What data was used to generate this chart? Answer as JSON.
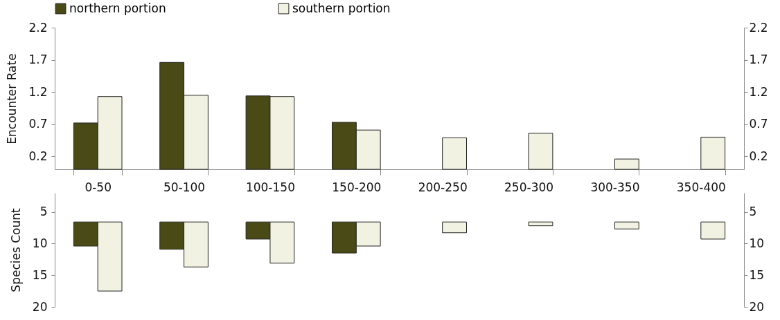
{
  "chart_data": [
    {
      "type": "bar",
      "ylabel": "Encounter Rate",
      "categories": [
        "0-50",
        "50-100",
        "100-150",
        "150-200",
        "200-250",
        "250-300",
        "300-350",
        "350-400"
      ],
      "series": [
        {
          "name": "northern portion",
          "color": "#4a4a16",
          "values": [
            0.72,
            1.66,
            1.14,
            0.73,
            null,
            null,
            null,
            null
          ]
        },
        {
          "name": "southern portion",
          "color": "#f2f2e2",
          "values": [
            1.13,
            1.15,
            1.13,
            0.61,
            0.49,
            0.56,
            0.16,
            0.5
          ]
        }
      ],
      "ylim": [
        0,
        2.2
      ],
      "yticks": [
        0.2,
        0.7,
        1.2,
        1.7,
        2.2
      ],
      "y2lim": [
        0,
        2.2
      ],
      "y2ticks": [
        0.2,
        0.7,
        1.2,
        1.7,
        2.2
      ],
      "legend": "top"
    },
    {
      "type": "bar",
      "ylabel": "Species Count",
      "categories": [
        null,
        null,
        null,
        null,
        null,
        null,
        null,
        null
      ],
      "tick_labels": "y",
      "series": [
        {
          "color": "#4a4a16",
          "base": [
            6.6,
            6.6,
            6.6,
            6.6,
            null,
            null,
            null,
            null
          ],
          "values": [
            3.8,
            4.3,
            2.7,
            4.9,
            null,
            null,
            null,
            null
          ]
        },
        {
          "color": "#f2f2e2",
          "base": [
            6.6,
            6.6,
            6.6,
            6.6,
            6.6,
            6.6,
            6.6,
            6.6
          ],
          "values": [
            10.9,
            7.1,
            6.5,
            3.8,
            1.7,
            0.6,
            1.1,
            2.7
          ]
        }
      ],
      "ylim": [
        20,
        2
      ],
      "yticks": [
        5,
        10,
        15,
        20
      ],
      "y2lim": [
        20,
        2
      ],
      "y2ticks": [
        5,
        10,
        15,
        20
      ]
    }
  ]
}
